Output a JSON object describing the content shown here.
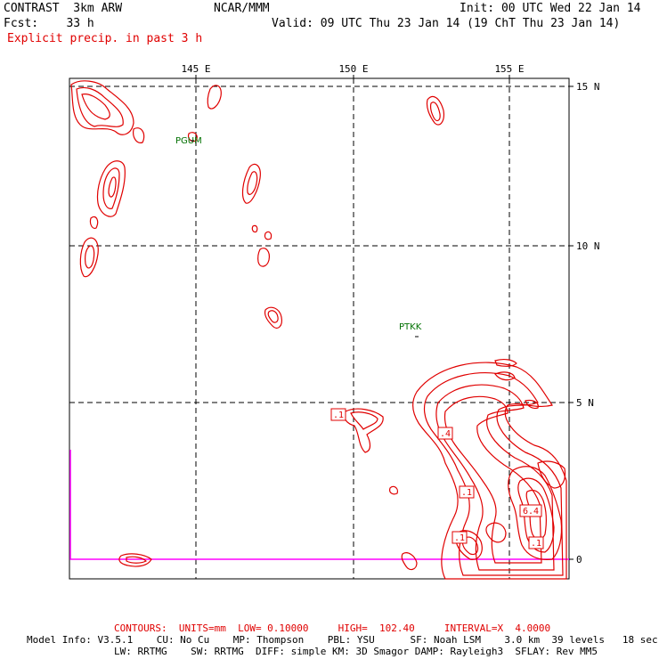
{
  "header": {
    "model": "CONTRAST  3km ARW",
    "org": "NCAR/MMM",
    "init": "Init: 00 UTC Wed 22 Jan 14",
    "fcst": "Fcst:    33 h",
    "valid": "Valid: 09 UTC Thu 23 Jan 14 (19 ChT Thu 23 Jan 14)",
    "field": "Explicit precip. in past 3 h"
  },
  "map": {
    "lon_labels": [
      "145 E",
      "150 E",
      "155 E"
    ],
    "lat_labels": [
      "15 N",
      "10 N",
      "5 N",
      "0"
    ],
    "stations": [
      {
        "id": "PGUM"
      },
      {
        "id": "PTKK"
      }
    ],
    "contour_labels": [
      ".1",
      ".4",
      ".1",
      "6.4",
      ".1",
      ".1"
    ]
  },
  "footer": {
    "contours": "CONTOURS:  UNITS=mm  LOW= 0.10000     HIGH=  102.40     INTERVAL=X  4.0000",
    "model_info_1": "Model Info: V3.5.1    CU: No Cu    MP: Thompson    PBL: YSU      SF: Noah LSM    3.0 km  39 levels   18 sec",
    "model_info_2": "LW: RRTMG    SW: RRTMG  DIFF: simple KM: 3D Smagor DAMP: Rayleigh3  SFLAY: Rev MM5"
  },
  "colors": {
    "contour": "#e00000",
    "grid": "#000000",
    "station": "#007000",
    "boundary": "#ff00ff"
  }
}
